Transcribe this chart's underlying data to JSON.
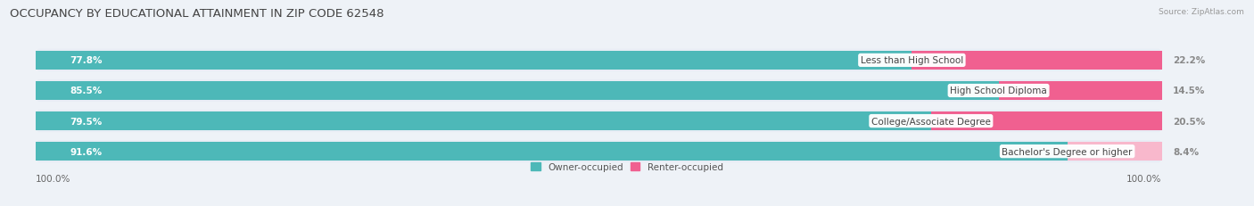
{
  "title": "OCCUPANCY BY EDUCATIONAL ATTAINMENT IN ZIP CODE 62548",
  "source": "Source: ZipAtlas.com",
  "categories": [
    "Less than High School",
    "High School Diploma",
    "College/Associate Degree",
    "Bachelor's Degree or higher"
  ],
  "owner_values": [
    77.8,
    85.5,
    79.5,
    91.6
  ],
  "renter_values": [
    22.2,
    14.5,
    20.5,
    8.4
  ],
  "owner_color": "#4db8b8",
  "renter_colors": [
    "#f06090",
    "#f06090",
    "#f06090",
    "#f8b8cc"
  ],
  "background_color": "#eef2f7",
  "bar_bg_color": "#dde4ee",
  "row_bg_color": "#e8edf5",
  "title_fontsize": 9.5,
  "label_fontsize": 7.5,
  "tick_fontsize": 7.5,
  "axis_label_left": "100.0%",
  "axis_label_right": "100.0%",
  "total_scale": 100
}
